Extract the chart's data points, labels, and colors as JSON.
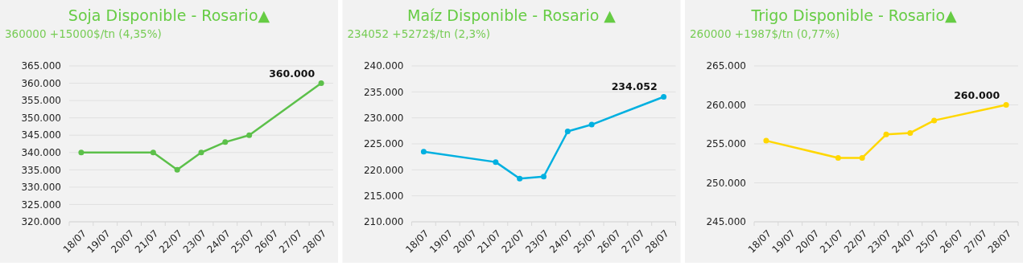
{
  "chart_data": [
    {
      "type": "line",
      "title": "Soja Disponible - Rosario▲",
      "subtitle": "360000 +15000$/tn (4,35%)",
      "categories": [
        "18/07",
        "19/07",
        "20/07",
        "21/07",
        "22/07",
        "23/07",
        "24/07",
        "25/07",
        "26/07",
        "27/07",
        "28/07"
      ],
      "series": [
        {
          "color": "#5cc04a",
          "values": [
            340000,
            null,
            null,
            340000,
            335000,
            340000,
            343000,
            345000,
            null,
            null,
            360000
          ],
          "value_labels": [
            null,
            null,
            null,
            null,
            null,
            null,
            null,
            null,
            null,
            null,
            "360.000"
          ]
        }
      ],
      "ylim": [
        320000,
        365000
      ],
      "yticks": [
        {
          "value": 320000,
          "label": "320.000"
        },
        {
          "value": 325000,
          "label": "325.000"
        },
        {
          "value": 330000,
          "label": "330.000"
        },
        {
          "value": 335000,
          "label": "335.000"
        },
        {
          "value": 340000,
          "label": "340.000"
        },
        {
          "value": 345000,
          "label": "345.000"
        },
        {
          "value": 350000,
          "label": "350.000"
        },
        {
          "value": 355000,
          "label": "355.000"
        },
        {
          "value": 360000,
          "label": "360.000"
        },
        {
          "value": 365000,
          "label": "365.000"
        }
      ],
      "grid": "y",
      "marker": "circle"
    },
    {
      "type": "line",
      "title": "Maíz Disponible - Rosario ▲",
      "subtitle": "234052 +5272$/tn (2,3%)",
      "categories": [
        "18/07",
        "19/07",
        "20/07",
        "21/07",
        "22/07",
        "23/07",
        "24/07",
        "25/07",
        "26/07",
        "27/07",
        "28/07"
      ],
      "series": [
        {
          "color": "#00b0e0",
          "values": [
            223500,
            null,
            null,
            221500,
            218300,
            218700,
            227400,
            228700,
            null,
            null,
            234052
          ],
          "value_labels": [
            null,
            null,
            null,
            null,
            null,
            null,
            null,
            null,
            null,
            null,
            "234.052"
          ]
        }
      ],
      "ylim": [
        210000,
        240000
      ],
      "yticks": [
        {
          "value": 210000,
          "label": "210.000"
        },
        {
          "value": 215000,
          "label": "215.000"
        },
        {
          "value": 220000,
          "label": "220.000"
        },
        {
          "value": 225000,
          "label": "225.000"
        },
        {
          "value": 230000,
          "label": "230.000"
        },
        {
          "value": 235000,
          "label": "235.000"
        },
        {
          "value": 240000,
          "label": "240.000"
        }
      ],
      "grid": "y",
      "marker": "circle"
    },
    {
      "type": "line",
      "title": "Trigo Disponible - Rosario▲",
      "subtitle": "260000 +1987$/tn (0,77%)",
      "categories": [
        "18/07",
        "19/07",
        "20/07",
        "21/07",
        "22/07",
        "23/07",
        "24/07",
        "25/07",
        "26/07",
        "27/07",
        "28/07"
      ],
      "series": [
        {
          "color": "#ffd700",
          "values": [
            255400,
            null,
            null,
            253200,
            253200,
            256200,
            256400,
            258000,
            null,
            null,
            260000
          ],
          "value_labels": [
            null,
            null,
            null,
            null,
            null,
            null,
            null,
            null,
            null,
            null,
            "260.000"
          ]
        }
      ],
      "ylim": [
        245000,
        265000
      ],
      "yticks": [
        {
          "value": 245000,
          "label": "245.000"
        },
        {
          "value": 250000,
          "label": "250.000"
        },
        {
          "value": 255000,
          "label": "255.000"
        },
        {
          "value": 260000,
          "label": "260.000"
        },
        {
          "value": 265000,
          "label": "265.000"
        }
      ],
      "grid": "y",
      "marker": "circle"
    }
  ]
}
